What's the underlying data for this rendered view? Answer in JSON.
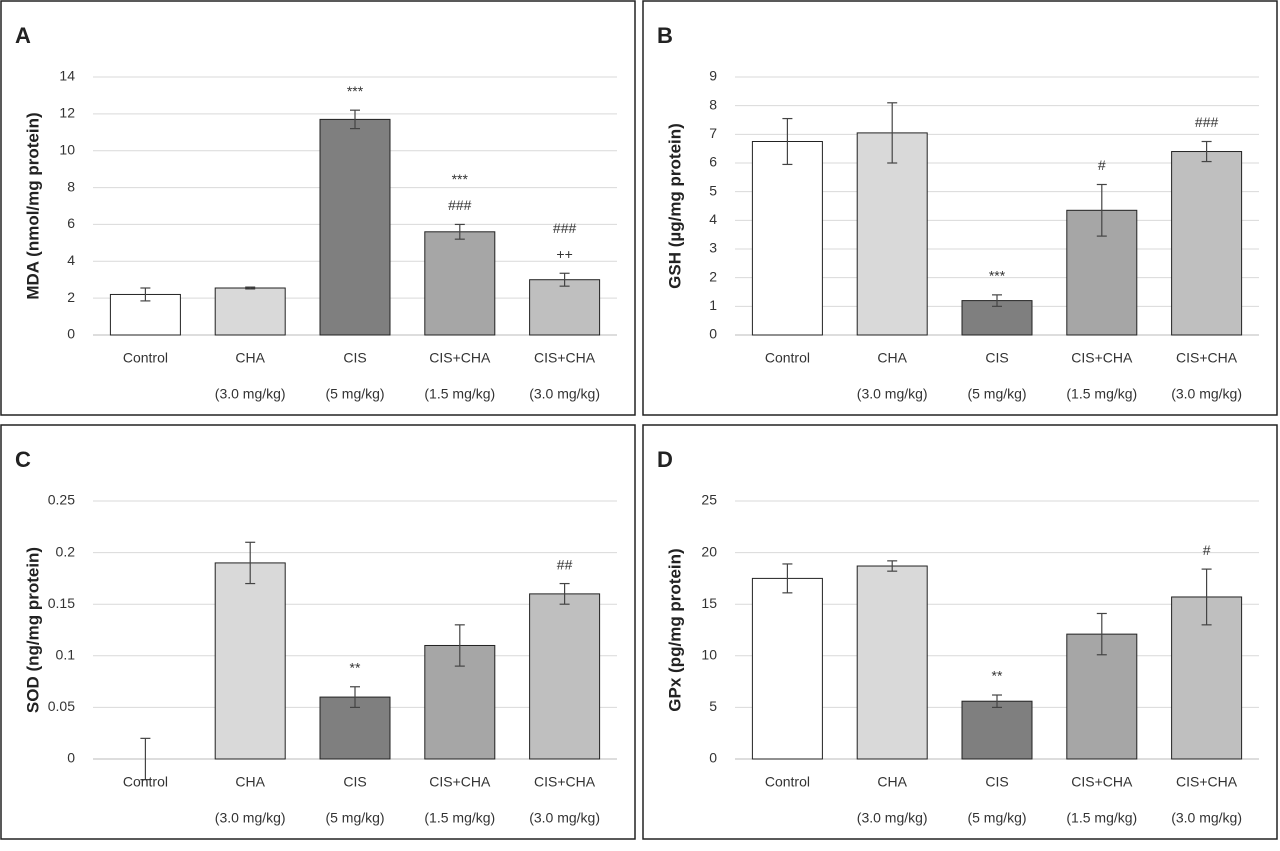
{
  "chart_data": [
    {
      "type": "bar",
      "panel_label": "A",
      "y_label": "MDA (nmol/mg protein)",
      "categories": [
        [
          "Control"
        ],
        [
          "CHA",
          "(3.0 mg/kg)"
        ],
        [
          "CIS",
          "(5 mg/kg)"
        ],
        [
          "CIS+CHA",
          "(1.5 mg/kg)"
        ],
        [
          "CIS+CHA",
          "(3.0 mg/kg)"
        ]
      ],
      "values": [
        2.2,
        2.55,
        11.7,
        5.6,
        3.0
      ],
      "errors": [
        0.35,
        0.05,
        0.5,
        0.4,
        0.35
      ],
      "annotations": [
        null,
        null,
        [
          "***"
        ],
        [
          "***",
          "###"
        ],
        [
          "###",
          "++"
        ]
      ],
      "colors": [
        "#ffffff",
        "#d9d9d9",
        "#7f7f7f",
        "#a6a6a6",
        "#bfbfbf"
      ],
      "ylim": [
        0,
        14
      ],
      "yticks": [
        0,
        2,
        4,
        6,
        8,
        10,
        12,
        14
      ],
      "grid": true
    },
    {
      "type": "bar",
      "panel_label": "B",
      "y_label": "GSH (µg/mg protein)",
      "categories": [
        [
          "Control"
        ],
        [
          "CHA",
          "(3.0 mg/kg)"
        ],
        [
          "CIS",
          "(5 mg/kg)"
        ],
        [
          "CIS+CHA",
          "(1.5 mg/kg)"
        ],
        [
          "CIS+CHA",
          "(3.0 mg/kg)"
        ]
      ],
      "values": [
        6.75,
        7.05,
        1.2,
        4.35,
        6.4
      ],
      "errors": [
        0.8,
        1.05,
        0.2,
        0.9,
        0.35
      ],
      "annotations": [
        null,
        null,
        [
          "***"
        ],
        [
          "#"
        ],
        [
          "###"
        ]
      ],
      "colors": [
        "#ffffff",
        "#d9d9d9",
        "#7f7f7f",
        "#a6a6a6",
        "#bfbfbf"
      ],
      "ylim": [
        0,
        9
      ],
      "yticks": [
        0,
        1,
        2,
        3,
        4,
        5,
        6,
        7,
        8,
        9
      ],
      "grid": true
    },
    {
      "type": "bar",
      "panel_label": "C",
      "y_label": "SOD (ng/mg protein)",
      "categories": [
        [
          "Control"
        ],
        [
          "CHA",
          "(3.0 mg/kg)"
        ],
        [
          "CIS",
          "(5 mg/kg)"
        ],
        [
          "CIS+CHA",
          "(1.5 mg/kg)"
        ],
        [
          "CIS+CHA",
          "(3.0 mg/kg)"
        ]
      ],
      "values": [
        0,
        0.19,
        0.06,
        0.11,
        0.16
      ],
      "errors": [
        0.02,
        0.02,
        0.01,
        0.02,
        0.01
      ],
      "annotations": [
        null,
        null,
        [
          "**"
        ],
        null,
        [
          "##"
        ]
      ],
      "colors": [
        "#ffffff",
        "#d9d9d9",
        "#7f7f7f",
        "#a6a6a6",
        "#bfbfbf"
      ],
      "ylim": [
        0,
        0.25
      ],
      "yticks": [
        0,
        0.05,
        0.1,
        0.15,
        0.2,
        0.25
      ],
      "grid": true
    },
    {
      "type": "bar",
      "panel_label": "D",
      "y_label": "GPx (pg/mg protein)",
      "categories": [
        [
          "Control"
        ],
        [
          "CHA",
          "(3.0 mg/kg)"
        ],
        [
          "CIS",
          "(5 mg/kg)"
        ],
        [
          "CIS+CHA",
          "(1.5 mg/kg)"
        ],
        [
          "CIS+CHA",
          "(3.0 mg/kg)"
        ]
      ],
      "values": [
        17.5,
        18.7,
        5.6,
        12.1,
        15.7
      ],
      "errors": [
        1.4,
        0.5,
        0.6,
        2.0,
        2.7
      ],
      "annotations": [
        null,
        null,
        [
          "**"
        ],
        null,
        [
          "#"
        ]
      ],
      "colors": [
        "#ffffff",
        "#d9d9d9",
        "#7f7f7f",
        "#a6a6a6",
        "#bfbfbf"
      ],
      "ylim": [
        0,
        25
      ],
      "yticks": [
        0,
        5,
        10,
        15,
        20,
        25
      ],
      "grid": true
    }
  ]
}
